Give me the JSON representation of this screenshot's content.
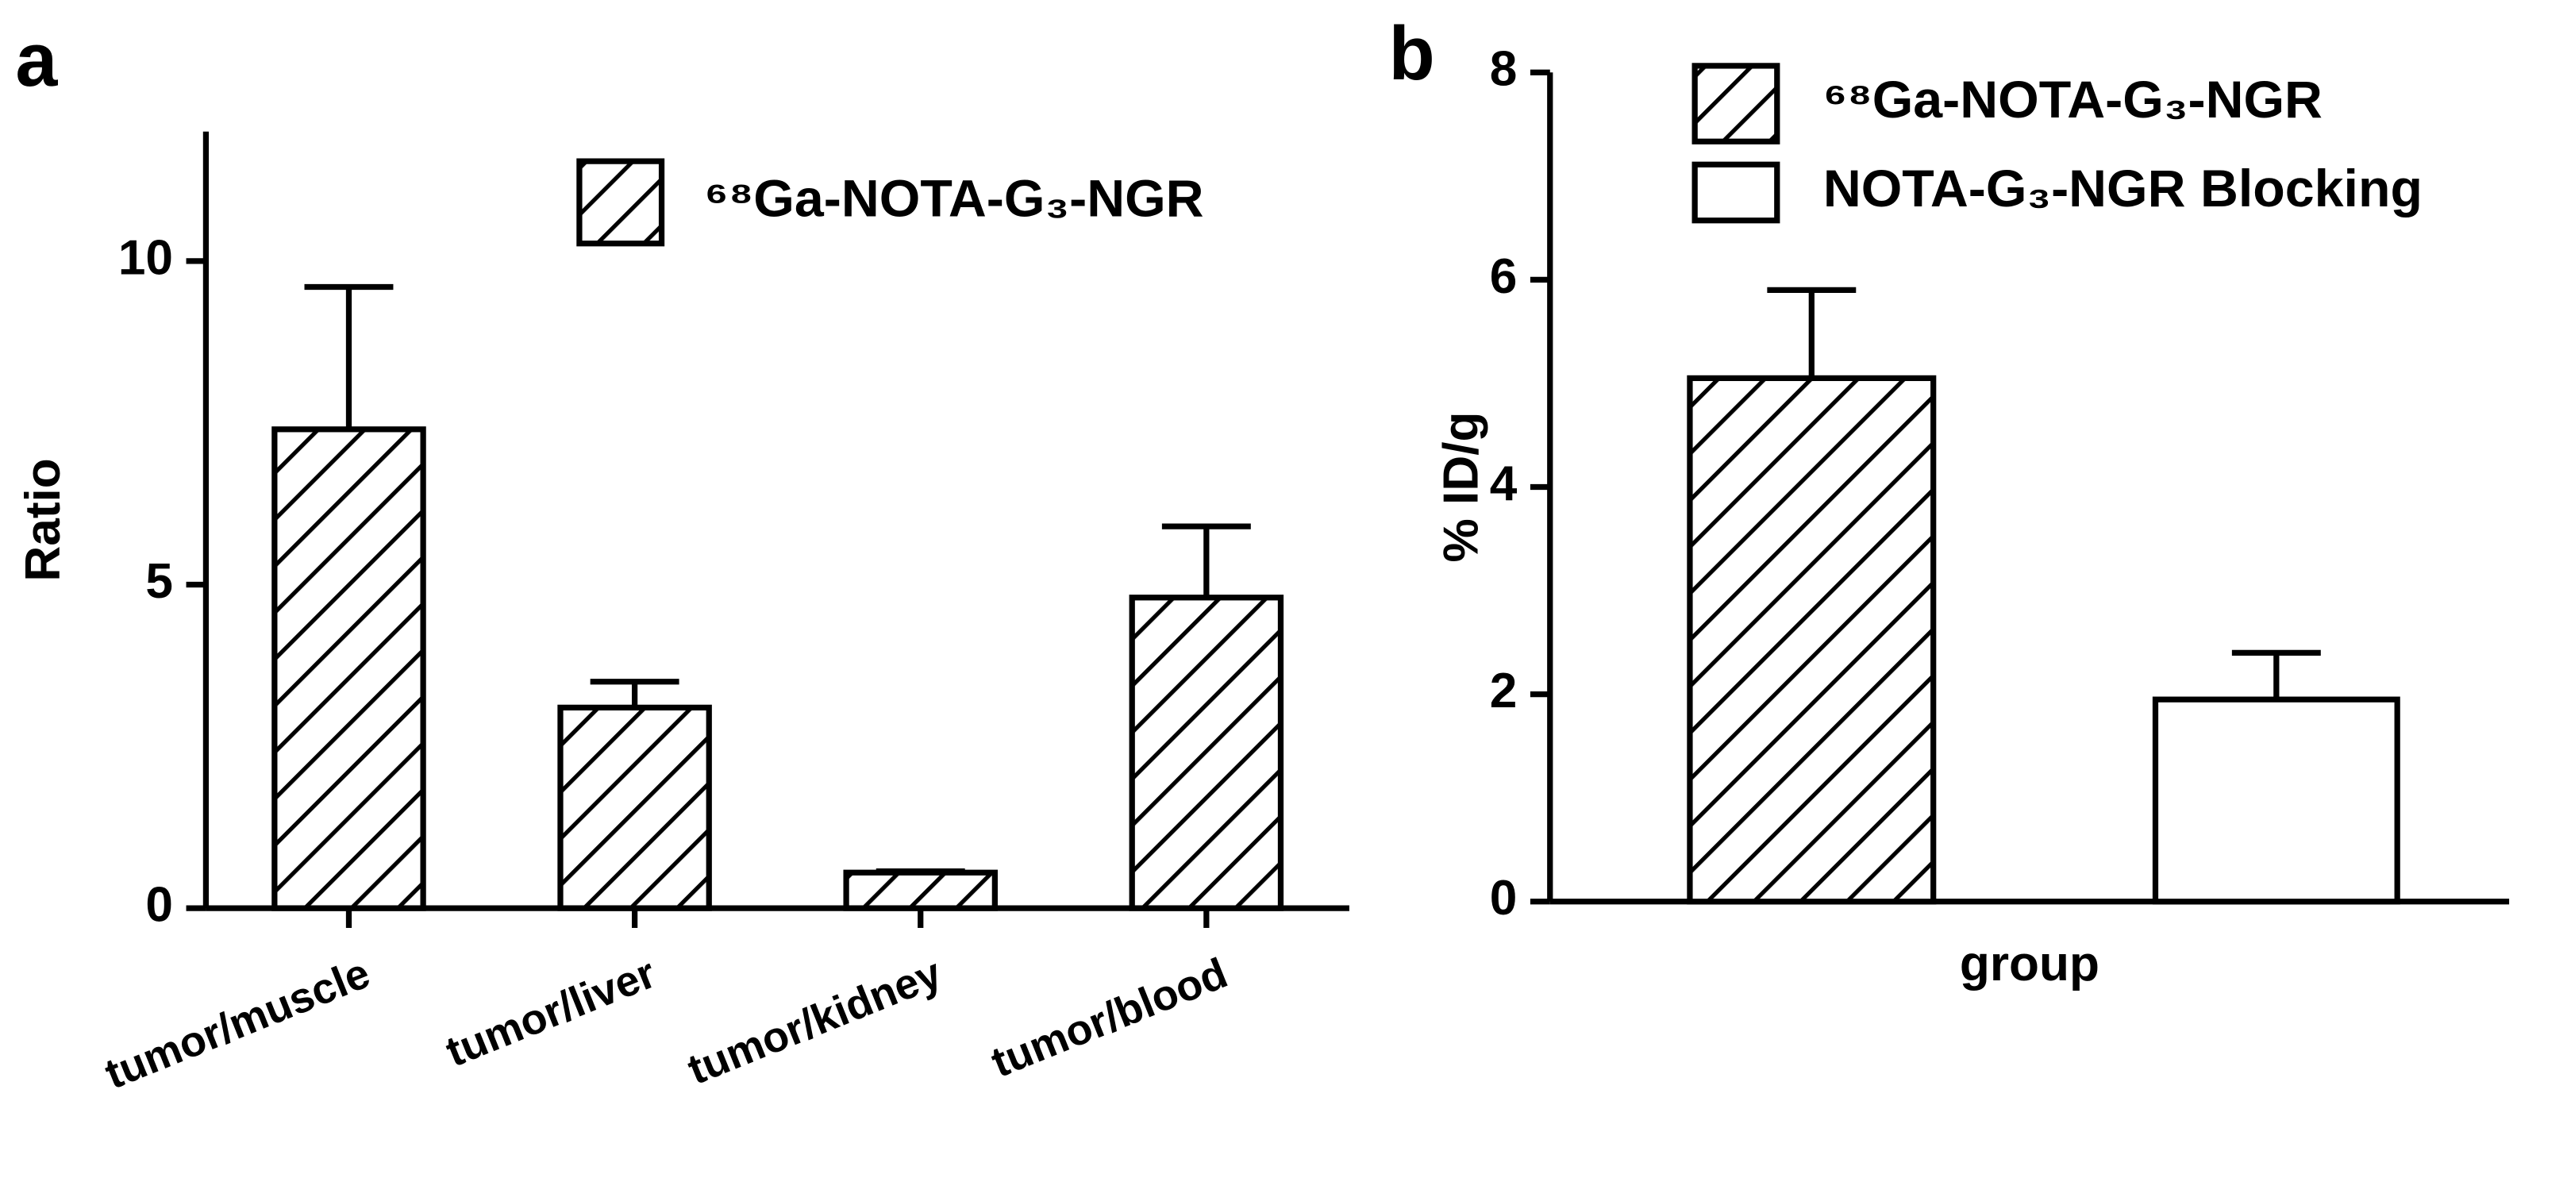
{
  "chart_data": [
    {
      "type": "bar",
      "panel_label": "a",
      "y_label": "Ratio",
      "categories": [
        "tumor/muscle",
        "tumor/liver",
        "tumor/kidney",
        "tumor/blood"
      ],
      "series": [
        {
          "name": "⁶⁸Ga-NOTA-G₃-NGR",
          "pattern": "hatch",
          "color": "#000000",
          "values": [
            7.4,
            3.1,
            0.55,
            4.8
          ],
          "errors": [
            2.2,
            0.4,
            0.02,
            1.1
          ]
        }
      ],
      "ylim": [
        0,
        12
      ],
      "yticks": [
        0,
        5,
        10
      ],
      "legend": "top-right"
    },
    {
      "type": "bar",
      "panel_label": "b",
      "y_label": "% ID/g",
      "categories": [
        "group"
      ],
      "series": [
        {
          "name": "⁶⁸Ga-NOTA-G₃-NGR",
          "pattern": "hatch",
          "color": "#000000",
          "values": [
            5.05
          ],
          "errors": [
            0.85
          ]
        },
        {
          "name": "NOTA-G₃-NGR Blocking",
          "pattern": "none",
          "color": "#000000",
          "values": [
            1.95
          ],
          "errors": [
            0.45
          ]
        }
      ],
      "ylim": [
        0,
        8
      ],
      "yticks": [
        0,
        2,
        4,
        6,
        8
      ],
      "legend": "top-left"
    }
  ]
}
